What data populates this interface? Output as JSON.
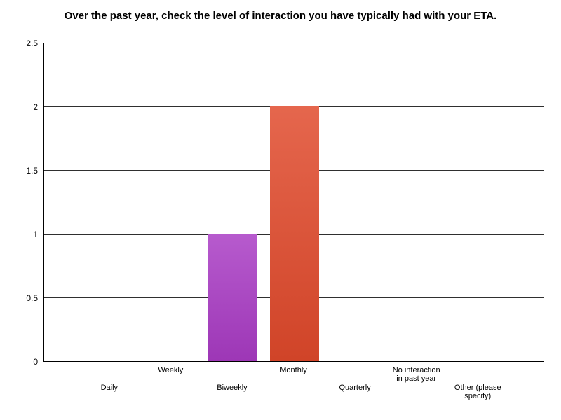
{
  "chart_data": {
    "type": "bar",
    "title": "Over the past year, check the level of interaction you have typically had with your ETA.",
    "categories": [
      "Daily",
      "Weekly",
      "Biweekly",
      "Monthly",
      "Quarterly",
      "No interaction\nin past year",
      "Other (please specify)"
    ],
    "values": [
      0,
      0,
      1,
      2,
      0,
      0,
      0
    ],
    "colors": [
      "",
      "",
      "#a93bc4",
      "#e0492b",
      "",
      "",
      ""
    ],
    "xlabel": "",
    "ylabel": "",
    "ylim": [
      0,
      2.5
    ],
    "yticks": [
      "0",
      "0.5",
      "1",
      "1.5",
      "2",
      "2.5"
    ],
    "grid": "horizontal",
    "legend": "none",
    "background": "#ffffff",
    "axis_color": "#000000"
  }
}
